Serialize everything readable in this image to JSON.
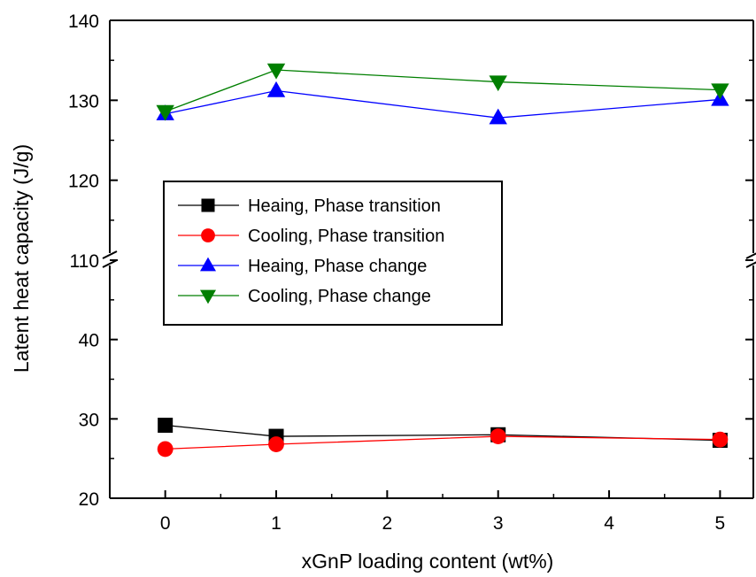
{
  "chart_data": {
    "type": "line",
    "xlabel": "xGnP loading content (wt%)",
    "ylabel": "Latent heat capacity (J/g)",
    "x": [
      0,
      1,
      3,
      5
    ],
    "xlim": [
      -0.5,
      5.3
    ],
    "xticks": [
      "0",
      "1",
      "2",
      "3",
      "4",
      "5"
    ],
    "y_axis_broken": true,
    "ylim_lower": [
      20,
      50
    ],
    "ylim_upper": [
      110,
      140
    ],
    "yticks_lower": [
      "20",
      "30",
      "40"
    ],
    "yticks_upper": [
      "110",
      "120",
      "130",
      "140"
    ],
    "legend_position": "upper-left",
    "series": [
      {
        "name": "Heaing, Phase transition",
        "values": [
          29.2,
          27.8,
          28.0,
          27.3
        ],
        "color": "#000000",
        "marker": "square"
      },
      {
        "name": "Cooling, Phase transition",
        "values": [
          26.2,
          26.8,
          27.8,
          27.4
        ],
        "color": "#ff0000",
        "marker": "circle"
      },
      {
        "name": "Heaing, Phase change",
        "values": [
          128.3,
          131.2,
          127.8,
          130.1
        ],
        "color": "#0000ff",
        "marker": "triangle-up"
      },
      {
        "name": "Cooling, Phase change",
        "values": [
          128.6,
          133.8,
          132.3,
          131.3
        ],
        "color": "#007f00",
        "marker": "triangle-down"
      }
    ]
  }
}
